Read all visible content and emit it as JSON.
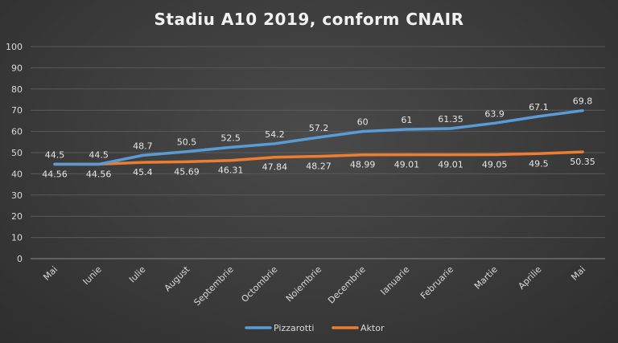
{
  "chart_data": {
    "type": "line",
    "title": "Stadiu A10 2019, conform CNAIR",
    "xlabel": "",
    "ylabel": "",
    "ylim": [
      0,
      100
    ],
    "yticks": [
      "0",
      "10",
      "20",
      "30",
      "40",
      "50",
      "60",
      "70",
      "80",
      "90",
      "100"
    ],
    "grid": true,
    "legend_position": "bottom",
    "categories": [
      "Mai",
      "Iunie",
      "Iulie",
      "August",
      "Septembrie",
      "Octombrie",
      "Noiembrie",
      "Decembrie",
      "Ianuarie",
      "Februarie",
      "Martie",
      "Aprilie",
      "Mai"
    ],
    "series": [
      {
        "name": "Pizzarotti",
        "color": "#5b9bd5",
        "values": [
          44.5,
          44.5,
          48.7,
          50.5,
          52.5,
          54.2,
          57.2,
          60,
          61,
          61.35,
          63.9,
          67.1,
          69.8
        ],
        "labels": [
          "44.5",
          "44.5",
          "48.7",
          "50.5",
          "52.5",
          "54.2",
          "57.2",
          "60",
          "61",
          "61.35",
          "63.9",
          "67.1",
          "69.8"
        ]
      },
      {
        "name": "Aktor",
        "color": "#ed7d31",
        "values": [
          44.56,
          44.56,
          45.4,
          45.69,
          46.31,
          47.84,
          48.27,
          48.99,
          49.01,
          49.01,
          49.05,
          49.5,
          50.35
        ],
        "labels": [
          "44.56",
          "44.56",
          "45.4",
          "45.69",
          "46.31",
          "47.84",
          "48.27",
          "48.99",
          "49.01",
          "49.01",
          "49.05",
          "49.5",
          "50.35"
        ]
      }
    ]
  }
}
